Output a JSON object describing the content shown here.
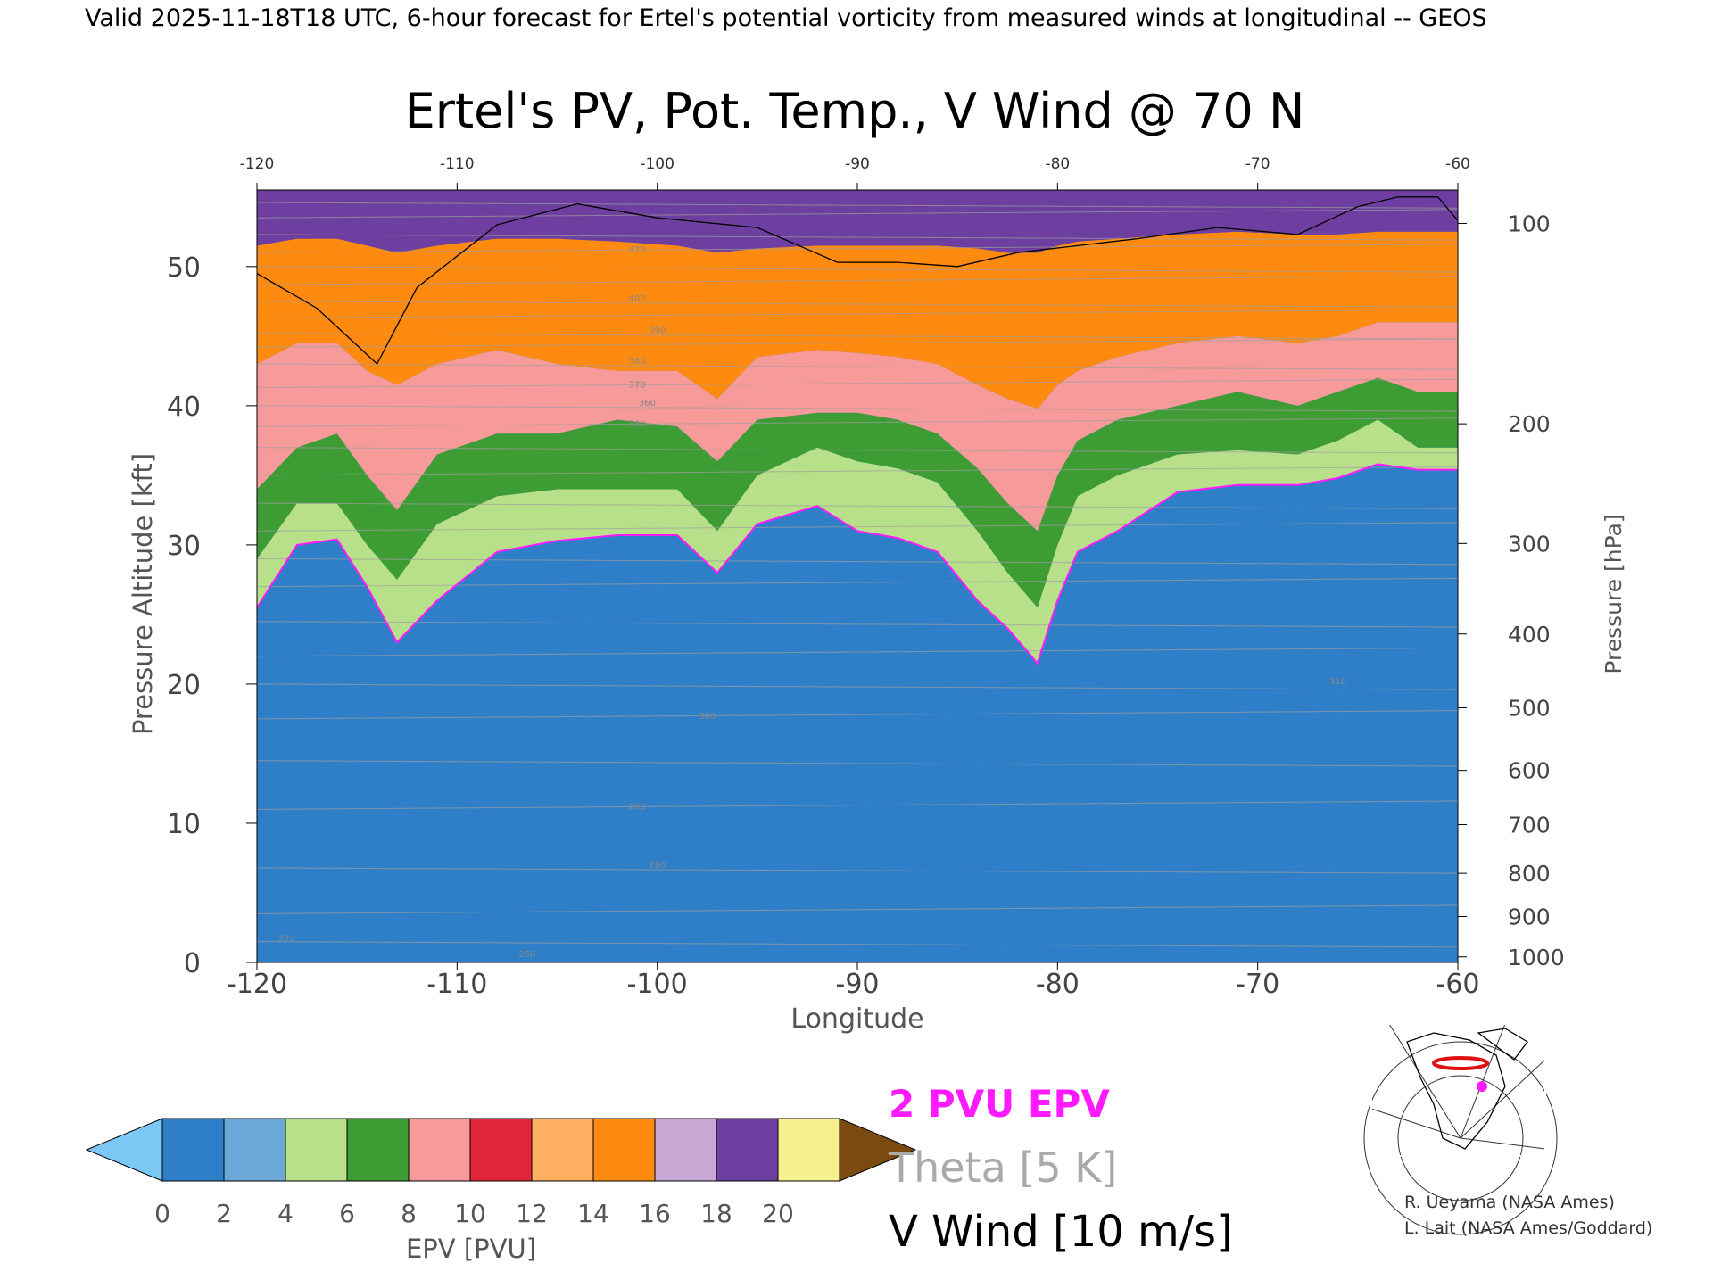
{
  "header": {
    "valid_line": "Valid 2025-11-18T18 UTC, 6-hour forecast for Ertel's potential vorticity from measured winds at longitudinal -- GEOS"
  },
  "chart_data": {
    "type": "heatmap",
    "title": "Ertel's PV, Pot. Temp., V Wind @ 70 N",
    "xlabel": "Longitude",
    "ylabel_left": "Pressure Altitude [kft]",
    "ylabel_right": "Pressure [hPa]",
    "xlim": [
      -120,
      -60
    ],
    "ylim": [
      0,
      55.5
    ],
    "x_ticks": [
      "-120",
      "-110",
      "-100",
      "-90",
      "-80",
      "-70",
      "-60"
    ],
    "x_tick_values": [
      -120,
      -110,
      -100,
      -90,
      -80,
      -70,
      -60
    ],
    "y_ticks": [
      "0",
      "10",
      "20",
      "30",
      "40",
      "50"
    ],
    "y_tick_values": [
      0,
      10,
      20,
      30,
      40,
      50
    ],
    "pressure_ticks": [
      {
        "label": "100",
        "kft": 53.1
      },
      {
        "label": "200",
        "kft": 38.7
      },
      {
        "label": "300",
        "kft": 30.1
      },
      {
        "label": "400",
        "kft": 23.6
      },
      {
        "label": "500",
        "kft": 18.3
      },
      {
        "label": "600",
        "kft": 13.8
      },
      {
        "label": "700",
        "kft": 9.9
      },
      {
        "label": "800",
        "kft": 6.4
      },
      {
        "label": "900",
        "kft": 3.3
      },
      {
        "label": "1000",
        "kft": 0.4
      }
    ],
    "grid": false,
    "epv_colorbar": {
      "label": "EPV [PVU]",
      "ticks": [
        "0",
        "2",
        "4",
        "6",
        "8",
        "10",
        "12",
        "14",
        "16",
        "18",
        "20"
      ],
      "colors": [
        "#2f7fc8",
        "#6aa8d8",
        "#b8e08a",
        "#3e9c35",
        "#f79a9a",
        "#e2263a",
        "#ffb060",
        "#ff8a10",
        "#c7a8d4",
        "#6e3fa0",
        "#f6f090"
      ],
      "under_color": "#7cc8f4",
      "over_color": "#7a4a10"
    },
    "legend": [
      {
        "text": "2 PVU EPV",
        "color": "#ff1aff"
      },
      {
        "text": "Theta [5 K]",
        "color": "#aaaaaa"
      },
      {
        "text": "V Wind [10 m/s]",
        "color": "#000000"
      }
    ],
    "epv_band_boundaries_kft": {
      "x": [
        -120,
        -118,
        -116,
        -114.5,
        -113,
        -111,
        -108,
        -105,
        -102,
        -99,
        -97,
        -95,
        -92,
        -90,
        -88,
        -86,
        -84,
        -82.5,
        -81,
        -80,
        -79,
        -77,
        -74,
        -71,
        -68,
        -66,
        -64,
        -62,
        -60
      ],
      "pv2": [
        25.5,
        30,
        30.4,
        27,
        23,
        26,
        29.5,
        30.3,
        30.7,
        30.7,
        28,
        31.5,
        32.8,
        31,
        30.5,
        29.5,
        26,
        24,
        21.5,
        26,
        29.5,
        31,
        33.8,
        34.3,
        34.3,
        34.8,
        35.8,
        35.4,
        35.4
      ],
      "pv4": [
        29,
        33,
        33,
        30,
        27.5,
        31.5,
        33.5,
        34,
        34,
        34,
        31,
        35,
        37,
        36,
        35.5,
        34.5,
        31,
        28,
        25.5,
        30,
        33.5,
        35,
        36.5,
        36.8,
        36.5,
        37.5,
        39,
        37,
        37
      ],
      "pv6": [
        34,
        37,
        38,
        35,
        32.5,
        36.5,
        38,
        38,
        39,
        38.5,
        36,
        39,
        39.5,
        39.5,
        39,
        38,
        35.5,
        33,
        31,
        35,
        37.5,
        39,
        40,
        41,
        40,
        41,
        42,
        41,
        41
      ],
      "pv10": [
        43,
        44.5,
        44.5,
        42.5,
        41.5,
        43,
        44,
        43,
        42.5,
        42.5,
        40.5,
        43.5,
        44,
        43.8,
        43.5,
        43,
        41.5,
        40.5,
        39.8,
        41.5,
        42.5,
        43.5,
        44.5,
        45,
        44.5,
        45,
        46,
        46,
        46
      ],
      "pv14": [
        51.5,
        52,
        52,
        51.5,
        51,
        51.5,
        52,
        52,
        51.8,
        51.5,
        51,
        51.3,
        51.5,
        51.5,
        51.5,
        51.5,
        51.3,
        51,
        51,
        51.5,
        51.8,
        52,
        52.3,
        52.5,
        52.3,
        52.3,
        52.5,
        52.5,
        52.5
      ]
    },
    "wind_zero_line": {
      "x": [
        -120,
        -117,
        -114,
        -112,
        -108,
        -104,
        -100,
        -95,
        -91,
        -88,
        -85,
        -82,
        -79,
        -76,
        -72,
        -68,
        -65,
        -63,
        -61,
        -60
      ],
      "kft": [
        49.5,
        47,
        43,
        48.5,
        53,
        54.5,
        53.5,
        52.8,
        50.3,
        50.3,
        50,
        51,
        51.5,
        52,
        52.8,
        52.3,
        54.3,
        55,
        55,
        53.3
      ]
    },
    "theta_labels": [
      {
        "text": "420",
        "x": -101,
        "kft": 51
      },
      {
        "text": "400",
        "x": -101,
        "kft": 47.5
      },
      {
        "text": "390",
        "x": -100,
        "kft": 45.2
      },
      {
        "text": "380",
        "x": -101,
        "kft": 43
      },
      {
        "text": "370",
        "x": -101,
        "kft": 41.3
      },
      {
        "text": "360",
        "x": -100.5,
        "kft": 40
      },
      {
        "text": "350",
        "x": -101,
        "kft": 38.5
      },
      {
        "text": "310",
        "x": -66,
        "kft": 20
      },
      {
        "text": "300",
        "x": -97.5,
        "kft": 17.5
      },
      {
        "text": "290",
        "x": -101,
        "kft": 11
      },
      {
        "text": "280",
        "x": -100,
        "kft": 6.8
      },
      {
        "text": "270",
        "x": -118.5,
        "kft": 1.5
      },
      {
        "text": "260",
        "x": -106.5,
        "kft": 0.4
      }
    ],
    "credits": [
      "R. Ueyama (NASA Ames)",
      "L. Lait (NASA Ames/Goddard)"
    ]
  }
}
